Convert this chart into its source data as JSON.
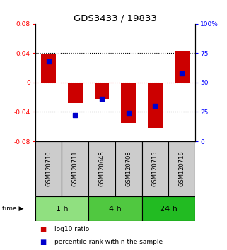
{
  "title": "GDS3433 / 19833",
  "samples": [
    "GSM120710",
    "GSM120711",
    "GSM120648",
    "GSM120708",
    "GSM120715",
    "GSM120716"
  ],
  "log10_ratio": [
    0.038,
    -0.028,
    -0.022,
    -0.055,
    -0.062,
    0.043
  ],
  "percentile_rank": [
    0.68,
    0.22,
    0.36,
    0.24,
    0.3,
    0.58
  ],
  "ylim_left": [
    -0.08,
    0.08
  ],
  "yticks_left": [
    -0.08,
    -0.04,
    0,
    0.04,
    0.08
  ],
  "yticks_right": [
    0,
    0.25,
    0.5,
    0.75,
    1.0
  ],
  "ytick_labels_right": [
    "0",
    "25",
    "50",
    "75",
    "100%"
  ],
  "time_groups": [
    {
      "label": "1 h",
      "start": 0,
      "end": 2,
      "color": "#90e080"
    },
    {
      "label": "4 h",
      "start": 2,
      "end": 4,
      "color": "#50c840"
    },
    {
      "label": "24 h",
      "start": 4,
      "end": 6,
      "color": "#22bb22"
    }
  ],
  "bar_color": "#cc0000",
  "dot_color": "#0000cc",
  "bar_width": 0.55,
  "sample_box_color": "#cccccc",
  "title_fontsize": 9.5,
  "tick_fontsize": 6.5,
  "sample_fontsize": 6,
  "legend_fontsize": 6.5,
  "group_label_fontsize": 8
}
